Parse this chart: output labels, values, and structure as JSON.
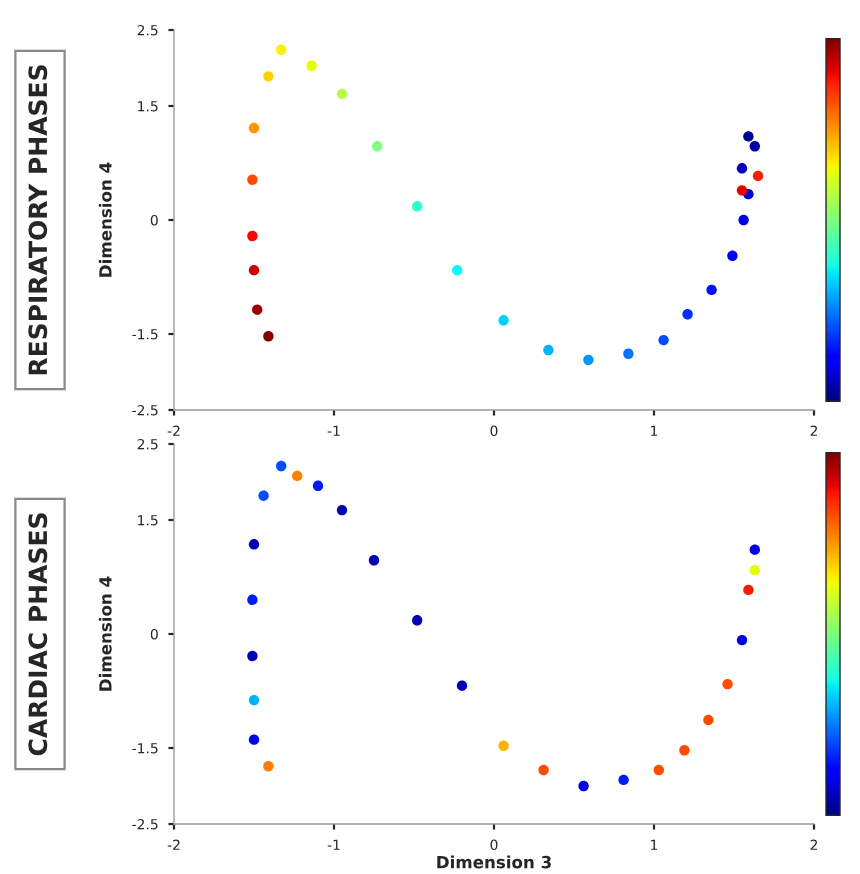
{
  "chart_data": [
    {
      "type": "scatter",
      "title": "RESPIRATORY PHASES",
      "ylabel": "Dimension 4",
      "grid": false,
      "xlim": [
        -2,
        2
      ],
      "xticks": [
        -2,
        -1,
        0,
        1,
        2
      ],
      "ylim": [
        -2.5,
        2.5
      ],
      "yticks": [
        -2.5,
        -1.5,
        0,
        1.5,
        2.5
      ],
      "series": [
        {
          "x": [
            -1.41,
            -1.48,
            -1.5,
            -1.51,
            -1.51,
            -1.5,
            -1.41,
            -1.33,
            -1.14,
            -0.95,
            -0.73,
            -0.48,
            -0.23,
            0.06,
            0.34,
            0.59,
            0.84,
            1.06,
            1.21,
            1.36,
            1.49,
            1.56,
            1.59,
            1.55,
            1.63,
            1.59,
            1.55,
            1.65
          ],
          "values": [
            -1.53,
            -1.18,
            -0.66,
            -0.21,
            0.53,
            1.21,
            1.89,
            2.24,
            2.03,
            1.66,
            0.97,
            0.18,
            -0.66,
            -1.32,
            -1.71,
            -1.84,
            -1.76,
            -1.58,
            -1.24,
            -0.92,
            -0.47,
            0,
            0.34,
            0.68,
            0.97,
            1.1,
            0.39,
            0.58
          ],
          "colors": [
            "#800000",
            "#9e0000",
            "#d10000",
            "#ff0500",
            "#ff4d00",
            "#ff9400",
            "#ffd100",
            "#fff000",
            "#e6ff00",
            "#b3ff4d",
            "#80ff80",
            "#2effd1",
            "#00ffff",
            "#00d1ff",
            "#00b3ff",
            "#0094ff",
            "#0075ff",
            "#004dff",
            "#002eff",
            "#000fff",
            "#0000fa",
            "#0000e6",
            "#0000d1",
            "#0000bd",
            "#0000a8",
            "#000094",
            "#e60000",
            "#ff1a00"
          ]
        }
      ]
    },
    {
      "type": "scatter",
      "title": "CARDIAC PHASES",
      "xlabel": "Dimension 3",
      "ylabel": "Dimension 4",
      "grid": false,
      "xlim": [
        -2,
        2
      ],
      "xticks": [
        -2,
        -1,
        0,
        1,
        2
      ],
      "ylim": [
        -2.5,
        2.5
      ],
      "yticks": [
        -2.5,
        -1.5,
        0,
        1.5,
        2.5
      ],
      "series": [
        {
          "x": [
            -1.41,
            -1.5,
            -1.5,
            -1.51,
            -1.51,
            -1.5,
            -1.44,
            -1.33,
            -1.23,
            -1.1,
            -0.95,
            -0.75,
            -0.48,
            -0.2,
            0.06,
            0.31,
            0.56,
            0.81,
            1.03,
            1.19,
            1.34,
            1.46,
            1.55,
            1.59,
            1.63,
            1.63
          ],
          "values": [
            -1.74,
            -1.39,
            -0.87,
            -0.29,
            0.45,
            1.18,
            1.82,
            2.21,
            2.08,
            1.95,
            1.63,
            0.97,
            0.18,
            -0.68,
            -1.47,
            -1.79,
            -2.0,
            -1.92,
            -1.79,
            -1.53,
            -1.13,
            -0.66,
            -0.08,
            0.58,
            0.84,
            1.11
          ],
          "colors": [
            "#ff8000",
            "#0000e6",
            "#00b3ff",
            "#0000b3",
            "#001aff",
            "#0000b3",
            "#004dff",
            "#004dff",
            "#ff8000",
            "#001aff",
            "#0000b3",
            "#0000b3",
            "#0000b3",
            "#0000b3",
            "#ffb300",
            "#ff4d00",
            "#0000e6",
            "#001aff",
            "#ff4d00",
            "#ff4d00",
            "#ff4d00",
            "#ff4d00",
            "#0000e6",
            "#ff1a00",
            "#e6ff00",
            "#0000e6"
          ]
        }
      ]
    }
  ]
}
